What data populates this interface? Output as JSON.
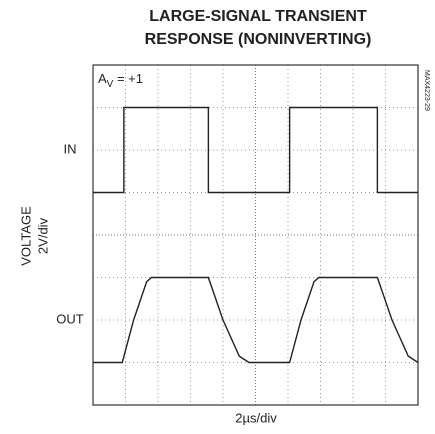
{
  "chart_data": {
    "type": "line",
    "title": [
      "LARGE-SIGNAL TRANSIENT",
      "RESPONSE (NONINVERTING)"
    ],
    "gain_label": {
      "base": "A",
      "subscript": "V",
      "value": " = +1"
    },
    "y_label": [
      "VOLTAGE",
      "2V/div"
    ],
    "x_label": "2µs/div",
    "figure_code": "MAX4223-29",
    "xlim": [
      0,
      20
    ],
    "ylim": [
      -8,
      8
    ],
    "xticks": [
      0,
      2,
      4,
      6,
      8,
      10,
      12,
      14,
      16,
      18,
      20
    ],
    "yticks": [
      -8,
      -6,
      -4,
      -2,
      0,
      2,
      4,
      6,
      8
    ],
    "grid": true,
    "series": [
      {
        "name": "IN",
        "color": "#222222",
        "x": [
          0,
          1.9,
          1.9,
          7.1,
          7.1,
          12.1,
          12.1,
          17.5,
          17.5,
          20
        ],
        "values": [
          2,
          2,
          6,
          6,
          2,
          2,
          6,
          6,
          2,
          2
        ]
      },
      {
        "name": "OUT",
        "color": "#222222",
        "x": [
          0,
          1.8,
          2.5,
          3.3,
          3.6,
          7.1,
          8.0,
          9.0,
          9.6,
          12.1,
          12.8,
          13.6,
          13.9,
          17.5,
          18.4,
          19.4,
          20
        ],
        "values": [
          -6,
          -6,
          -4,
          -2.2,
          -2,
          -2,
          -4,
          -5.7,
          -6,
          -6,
          -4,
          -2.2,
          -2,
          -2,
          -4,
          -5.7,
          -6
        ]
      }
    ]
  }
}
